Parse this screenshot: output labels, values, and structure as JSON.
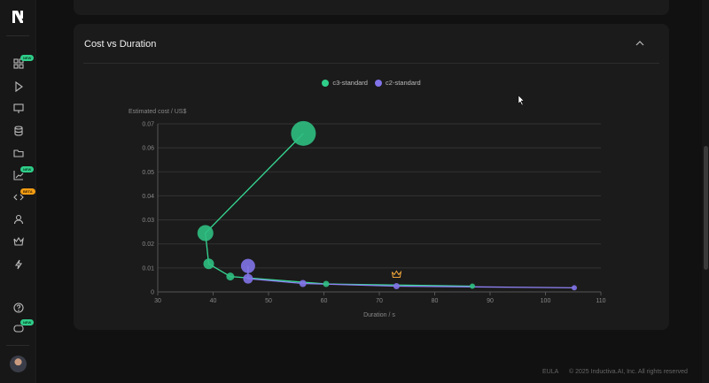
{
  "sidebar": {
    "items": [
      {
        "icon": "dashboard-icon",
        "badge": "NEW"
      },
      {
        "icon": "play-icon"
      },
      {
        "icon": "monitor-icon"
      },
      {
        "icon": "database-icon"
      },
      {
        "icon": "folder-icon"
      },
      {
        "icon": "chart-icon",
        "badge": "NEW"
      },
      {
        "icon": "code-icon",
        "badge": "BETA"
      },
      {
        "icon": "user-icon"
      },
      {
        "icon": "crown-icon"
      },
      {
        "icon": "lightning-icon"
      },
      {
        "icon": "help-icon"
      },
      {
        "icon": "discord-icon",
        "badge": "NEW"
      }
    ]
  },
  "card": {
    "title": "Cost vs Duration"
  },
  "footer": {
    "eula": "EULA",
    "copyright": "© 2025 Inductiva.AI, Inc. All rights reserved"
  },
  "colors": {
    "c3": "#2fbf82",
    "c2": "#8173e8",
    "crown": "#f0a53a",
    "grid": "#333333"
  },
  "chart_data": {
    "type": "scatter",
    "xlabel": "Duration / s",
    "ylabel": "Estimated cost / US$",
    "xlim": [
      30,
      110
    ],
    "ylim": [
      0,
      0.07
    ],
    "xticks": [
      "30",
      "40",
      "50",
      "60",
      "70",
      "80",
      "90",
      "100",
      "110"
    ],
    "yticks": [
      "0",
      "0.01",
      "0.02",
      "0.03",
      "0.04",
      "0.05",
      "0.06",
      "0.07"
    ],
    "grid": true,
    "legend_placement": "top",
    "series": [
      {
        "name": "c3-standard",
        "connected": true,
        "x": [
          56.3,
          38.6,
          39.2,
          43.1,
          60.4,
          86.8
        ],
        "y": [
          0.066,
          0.0245,
          0.0117,
          0.0064,
          0.0033,
          0.0024
        ]
      },
      {
        "name": "c2-standard",
        "connected": true,
        "x": [
          46.3,
          46.3,
          56.2,
          73.1,
          105.2
        ],
        "y": [
          0.0108,
          0.0055,
          0.0035,
          0.0024,
          0.0017
        ]
      }
    ],
    "annotations": [
      {
        "type": "crown-icon",
        "x": 73.1,
        "y": 0.0024,
        "label": "best"
      }
    ]
  }
}
